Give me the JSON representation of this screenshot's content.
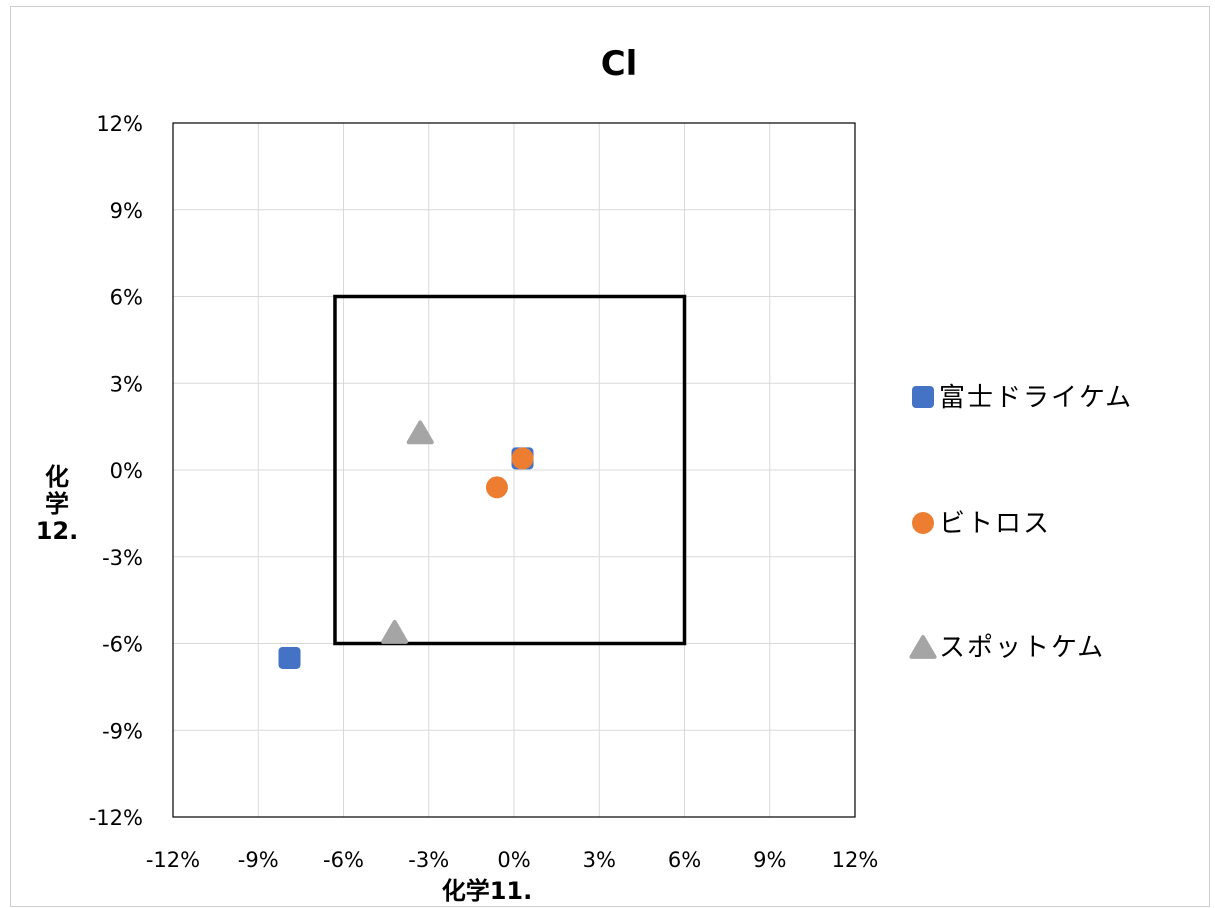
{
  "chart_data": {
    "type": "scatter",
    "title": "Cl",
    "xlabel": "化学11.",
    "ylabel": "化学12.",
    "xlim": [
      -0.12,
      0.12
    ],
    "ylim": [
      -0.12,
      0.12
    ],
    "xticks": [
      -0.12,
      -0.09,
      -0.06,
      -0.03,
      0,
      0.03,
      0.06,
      0.09,
      0.12
    ],
    "yticks": [
      -0.12,
      -0.09,
      -0.06,
      -0.03,
      0,
      0.03,
      0.06,
      0.09,
      0.12
    ],
    "tick_labels": [
      "-12%",
      "-9%",
      "-6%",
      "-3%",
      "0%",
      "3%",
      "6%",
      "9%",
      "12%"
    ],
    "grid": true,
    "legend_position": "right",
    "reference_box": {
      "x0": -0.063,
      "x1": 0.06,
      "y0": -0.06,
      "y1": 0.06
    },
    "series": [
      {
        "name": "富士ドライケム",
        "marker": "square",
        "color": "#4472C4",
        "points": [
          [
            0.003,
            0.004
          ],
          [
            -0.079,
            -0.065
          ]
        ]
      },
      {
        "name": "ビトロス",
        "marker": "circle",
        "color": "#ED7D31",
        "points": [
          [
            0.003,
            0.004
          ],
          [
            -0.006,
            -0.006
          ]
        ]
      },
      {
        "name": "スポットケム",
        "marker": "triangle",
        "color": "#A5A5A5",
        "points": [
          [
            -0.033,
            0.013
          ],
          [
            -0.042,
            -0.056
          ]
        ]
      }
    ]
  }
}
